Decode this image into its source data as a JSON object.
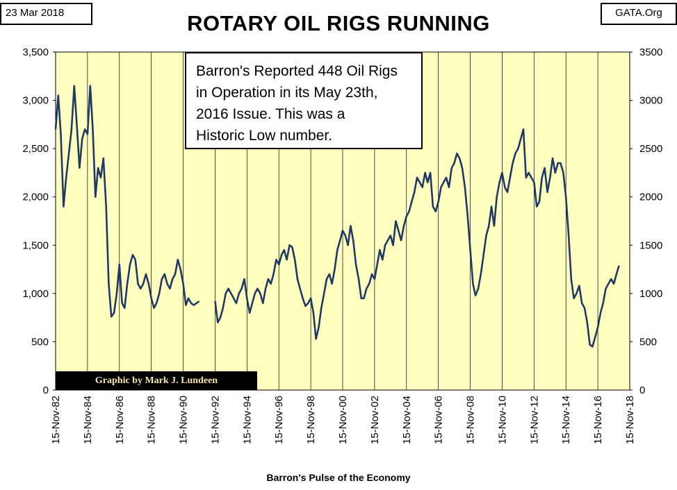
{
  "header": {
    "date": "23 Mar 2018",
    "source": "GATA.Org",
    "title": "ROTARY OIL RIGS  RUNNING"
  },
  "annotation": {
    "lines": [
      "Barron's Reported 448 Oil Rigs",
      "in Operation in its May 23th,",
      "2016 Issue.  This was a",
      "Historic Low number."
    ]
  },
  "credit": "Graphic by Mark J. Lundeen",
  "colors": {
    "plot_background": "#ffffc0",
    "series_line": "#1f3864",
    "grid": "#000000"
  },
  "chart_data": {
    "type": "line",
    "title": "ROTARY OIL RIGS  RUNNING",
    "xlabel": "Barron's Pulse of the Economy",
    "ylabel": "",
    "xlim": [
      "1982-11-15",
      "2018-11-15"
    ],
    "ylim": [
      0,
      3500
    ],
    "grid": true,
    "left_tick_labels": [
      "0",
      "500",
      "1,000",
      "1,500",
      "2,000",
      "2,500",
      "3,000",
      "3,500"
    ],
    "right_tick_labels": [
      "0",
      "500",
      "1000",
      "1500",
      "2000",
      "2500",
      "3000",
      "3500"
    ],
    "x_tick_labels": [
      "15-Nov-82",
      "15-Nov-84",
      "15-Nov-86",
      "15-Nov-88",
      "15-Nov-90",
      "15-Nov-92",
      "15-Nov-94",
      "15-Nov-96",
      "15-Nov-98",
      "15-Nov-00",
      "15-Nov-02",
      "15-Nov-04",
      "15-Nov-06",
      "15-Nov-08",
      "15-Nov-10",
      "15-Nov-12",
      "15-Nov-14",
      "15-Nov-16",
      "15-Nov-18"
    ],
    "series": [
      {
        "segments": [
          [
            [
              "1982-11-15",
              2700
            ],
            [
              "1983-01-15",
              3050
            ],
            [
              "1983-03-15",
              2650
            ],
            [
              "1983-05-15",
              1900
            ],
            [
              "1983-07-15",
              2200
            ],
            [
              "1983-09-15",
              2450
            ],
            [
              "1983-11-15",
              2700
            ],
            [
              "1984-01-15",
              3150
            ],
            [
              "1984-03-15",
              2750
            ],
            [
              "1984-05-15",
              2300
            ],
            [
              "1984-07-15",
              2600
            ],
            [
              "1984-09-15",
              2700
            ],
            [
              "1984-11-15",
              2650
            ],
            [
              "1985-01-15",
              3150
            ],
            [
              "1985-03-15",
              2700
            ],
            [
              "1985-05-15",
              2000
            ],
            [
              "1985-07-15",
              2300
            ],
            [
              "1985-09-15",
              2200
            ],
            [
              "1985-11-15",
              2400
            ],
            [
              "1986-01-15",
              1900
            ],
            [
              "1986-03-15",
              1100
            ],
            [
              "1986-05-15",
              760
            ],
            [
              "1986-07-15",
              800
            ],
            [
              "1986-09-15",
              1000
            ],
            [
              "1986-11-15",
              1300
            ],
            [
              "1987-01-15",
              900
            ],
            [
              "1987-03-15",
              850
            ],
            [
              "1987-05-15",
              1100
            ],
            [
              "1987-07-15",
              1300
            ],
            [
              "1987-09-15",
              1400
            ],
            [
              "1987-11-15",
              1350
            ],
            [
              "1988-01-15",
              1100
            ],
            [
              "1988-03-15",
              1050
            ],
            [
              "1988-05-15",
              1100
            ],
            [
              "1988-07-15",
              1200
            ],
            [
              "1988-09-15",
              1100
            ],
            [
              "1988-11-15",
              950
            ],
            [
              "1989-01-15",
              850
            ],
            [
              "1989-03-15",
              900
            ],
            [
              "1989-05-15",
              1000
            ],
            [
              "1989-07-15",
              1150
            ],
            [
              "1989-09-15",
              1200
            ],
            [
              "1989-11-15",
              1100
            ],
            [
              "1990-01-15",
              1050
            ],
            [
              "1990-03-15",
              1150
            ],
            [
              "1990-05-15",
              1200
            ],
            [
              "1990-07-15",
              1350
            ],
            [
              "1990-09-15",
              1250
            ],
            [
              "1990-11-15",
              1100
            ],
            [
              "1991-01-15",
              880
            ],
            [
              "1991-03-15",
              950
            ],
            [
              "1991-05-15",
              900
            ],
            [
              "1991-07-15",
              880
            ],
            [
              "1991-09-15",
              900
            ],
            [
              "1991-11-15",
              920
            ]
          ],
          [
            [
              "1992-11-15",
              920
            ],
            [
              "1993-01-15",
              700
            ],
            [
              "1993-03-15",
              750
            ],
            [
              "1993-05-15",
              850
            ],
            [
              "1993-07-15",
              1000
            ],
            [
              "1993-09-15",
              1050
            ],
            [
              "1993-11-15",
              1000
            ],
            [
              "1994-01-15",
              950
            ],
            [
              "1994-03-15",
              900
            ],
            [
              "1994-05-15",
              1000
            ],
            [
              "1994-07-15",
              1050
            ],
            [
              "1994-09-15",
              1150
            ],
            [
              "1994-11-15",
              950
            ],
            [
              "1995-01-15",
              800
            ],
            [
              "1995-03-15",
              900
            ],
            [
              "1995-05-15",
              1000
            ],
            [
              "1995-07-15",
              1050
            ],
            [
              "1995-09-15",
              1000
            ],
            [
              "1995-11-15",
              900
            ],
            [
              "1996-01-15",
              1050
            ],
            [
              "1996-03-15",
              1150
            ],
            [
              "1996-05-15",
              1100
            ],
            [
              "1996-07-15",
              1200
            ],
            [
              "1996-09-15",
              1350
            ],
            [
              "1996-11-15",
              1300
            ],
            [
              "1997-01-15",
              1400
            ],
            [
              "1997-03-15",
              1450
            ],
            [
              "1997-05-15",
              1350
            ],
            [
              "1997-07-15",
              1500
            ],
            [
              "1997-09-15",
              1480
            ],
            [
              "1997-11-15",
              1350
            ],
            [
              "1998-01-15",
              1150
            ],
            [
              "1998-03-15",
              1050
            ],
            [
              "1998-05-15",
              950
            ],
            [
              "1998-07-15",
              870
            ],
            [
              "1998-09-15",
              900
            ],
            [
              "1998-11-15",
              950
            ],
            [
              "1999-01-15",
              800
            ],
            [
              "1999-03-15",
              530
            ],
            [
              "1999-05-15",
              650
            ],
            [
              "1999-07-15",
              850
            ],
            [
              "1999-09-15",
              1000
            ],
            [
              "1999-11-15",
              1150
            ],
            [
              "2000-01-15",
              1200
            ],
            [
              "2000-03-15",
              1100
            ],
            [
              "2000-05-15",
              1250
            ],
            [
              "2000-07-15",
              1450
            ],
            [
              "2000-09-15",
              1550
            ],
            [
              "2000-11-15",
              1650
            ],
            [
              "2001-01-15",
              1600
            ],
            [
              "2001-03-15",
              1500
            ],
            [
              "2001-05-15",
              1700
            ],
            [
              "2001-07-15",
              1550
            ],
            [
              "2001-09-15",
              1300
            ],
            [
              "2001-11-15",
              1150
            ],
            [
              "2002-01-15",
              950
            ],
            [
              "2002-03-15",
              950
            ],
            [
              "2002-05-15",
              1050
            ],
            [
              "2002-07-15",
              1100
            ],
            [
              "2002-09-15",
              1200
            ],
            [
              "2002-11-15",
              1150
            ],
            [
              "2003-01-15",
              1300
            ],
            [
              "2003-03-15",
              1450
            ],
            [
              "2003-05-15",
              1350
            ],
            [
              "2003-07-15",
              1500
            ],
            [
              "2003-09-15",
              1550
            ],
            [
              "2003-11-15",
              1600
            ],
            [
              "2004-01-15",
              1500
            ],
            [
              "2004-03-15",
              1750
            ],
            [
              "2004-05-15",
              1650
            ],
            [
              "2004-07-15",
              1550
            ],
            [
              "2004-09-15",
              1700
            ],
            [
              "2004-11-15",
              1800
            ],
            [
              "2005-01-15",
              1850
            ],
            [
              "2005-03-15",
              1950
            ],
            [
              "2005-05-15",
              2050
            ],
            [
              "2005-07-15",
              2200
            ],
            [
              "2005-09-15",
              2150
            ],
            [
              "2005-11-15",
              2100
            ],
            [
              "2006-01-15",
              2250
            ],
            [
              "2006-03-15",
              2150
            ],
            [
              "2006-05-15",
              2250
            ],
            [
              "2006-07-15",
              1900
            ],
            [
              "2006-09-15",
              1850
            ],
            [
              "2006-11-15",
              1950
            ],
            [
              "2007-01-15",
              2100
            ],
            [
              "2007-03-15",
              2150
            ],
            [
              "2007-05-15",
              2200
            ],
            [
              "2007-07-15",
              2100
            ],
            [
              "2007-09-15",
              2300
            ],
            [
              "2007-11-15",
              2350
            ],
            [
              "2008-01-15",
              2450
            ],
            [
              "2008-03-15",
              2400
            ],
            [
              "2008-05-15",
              2300
            ],
            [
              "2008-07-15",
              2100
            ],
            [
              "2008-09-15",
              1800
            ],
            [
              "2008-11-15",
              1450
            ],
            [
              "2009-01-15",
              1100
            ],
            [
              "2009-03-15",
              980
            ],
            [
              "2009-05-15",
              1050
            ],
            [
              "2009-07-15",
              1200
            ],
            [
              "2009-09-15",
              1400
            ],
            [
              "2009-11-15",
              1600
            ],
            [
              "2010-01-15",
              1700
            ],
            [
              "2010-03-15",
              1900
            ],
            [
              "2010-05-15",
              1700
            ],
            [
              "2010-07-15",
              2000
            ],
            [
              "2010-09-15",
              2150
            ],
            [
              "2010-11-15",
              2250
            ],
            [
              "2011-01-15",
              2100
            ],
            [
              "2011-03-15",
              2050
            ],
            [
              "2011-05-15",
              2200
            ],
            [
              "2011-07-15",
              2350
            ],
            [
              "2011-09-15",
              2450
            ],
            [
              "2011-11-15",
              2500
            ],
            [
              "2012-01-15",
              2600
            ],
            [
              "2012-03-15",
              2700
            ],
            [
              "2012-05-15",
              2200
            ],
            [
              "2012-07-15",
              2250
            ],
            [
              "2012-09-15",
              2200
            ],
            [
              "2012-11-15",
              2150
            ],
            [
              "2013-01-15",
              1900
            ],
            [
              "2013-03-15",
              1950
            ],
            [
              "2013-05-15",
              2200
            ],
            [
              "2013-07-15",
              2300
            ],
            [
              "2013-09-15",
              2050
            ],
            [
              "2013-11-15",
              2200
            ],
            [
              "2014-01-15",
              2400
            ],
            [
              "2014-03-15",
              2250
            ],
            [
              "2014-05-15",
              2350
            ],
            [
              "2014-07-15",
              2350
            ],
            [
              "2014-09-15",
              2250
            ],
            [
              "2014-11-15",
              2000
            ],
            [
              "2015-01-15",
              1600
            ],
            [
              "2015-03-15",
              1150
            ],
            [
              "2015-05-15",
              950
            ],
            [
              "2015-07-15",
              1000
            ],
            [
              "2015-09-15",
              1080
            ],
            [
              "2015-11-15",
              900
            ],
            [
              "2016-01-15",
              850
            ],
            [
              "2016-03-15",
              700
            ],
            [
              "2016-05-15",
              470
            ],
            [
              "2016-07-15",
              450
            ],
            [
              "2016-09-15",
              550
            ],
            [
              "2016-11-15",
              650
            ],
            [
              "2017-01-15",
              800
            ],
            [
              "2017-03-15",
              900
            ],
            [
              "2017-05-15",
              1050
            ],
            [
              "2017-07-15",
              1100
            ],
            [
              "2017-09-15",
              1150
            ],
            [
              "2017-11-15",
              1100
            ],
            [
              "2018-01-15",
              1200
            ],
            [
              "2018-03-15",
              1290
            ]
          ]
        ]
      }
    ]
  }
}
